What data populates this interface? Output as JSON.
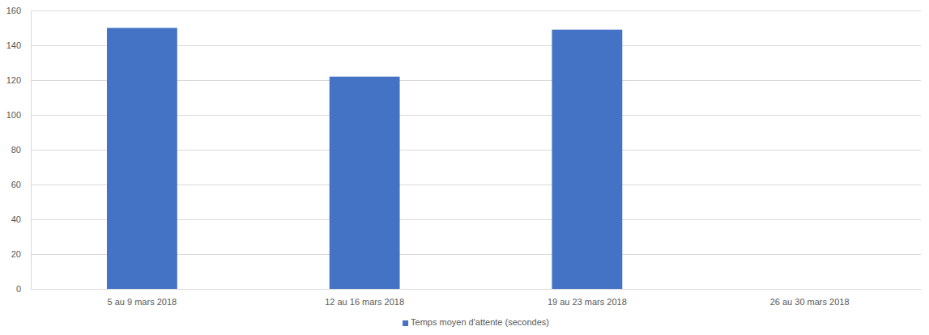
{
  "chart_data": {
    "type": "bar",
    "categories": [
      "5 au 9 mars 2018",
      "12 au 16 mars 2018",
      "19 au 23 mars 2018",
      "26 au 30 mars 2018"
    ],
    "series": [
      {
        "name": "Temps moyen d'attente (secondes)",
        "color": "#4472c4",
        "values": [
          150,
          122,
          149,
          null
        ]
      }
    ],
    "ylim": [
      0,
      160
    ],
    "yticks": [
      0,
      20,
      40,
      60,
      80,
      100,
      120,
      140,
      160
    ],
    "grid": true,
    "legend": "bottom"
  }
}
